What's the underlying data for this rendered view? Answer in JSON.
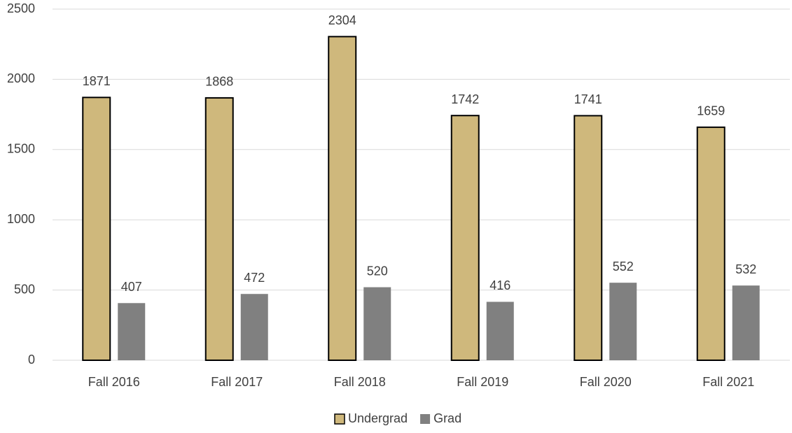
{
  "chart_data": {
    "type": "bar",
    "categories": [
      "Fall 2016",
      "Fall 2017",
      "Fall 2018",
      "Fall 2019",
      "Fall 2020",
      "Fall 2021"
    ],
    "series": [
      {
        "name": "Undergrad",
        "color": "#cfb87c",
        "values": [
          1871,
          1868,
          2304,
          1742,
          1741,
          1659
        ]
      },
      {
        "name": "Grad",
        "color": "#808080",
        "values": [
          407,
          472,
          520,
          416,
          552,
          532
        ]
      }
    ],
    "ylim": [
      0,
      2500
    ],
    "yticks": [
      0,
      500,
      1000,
      1500,
      2000,
      2500
    ],
    "grid": true,
    "legend": "bottom"
  }
}
